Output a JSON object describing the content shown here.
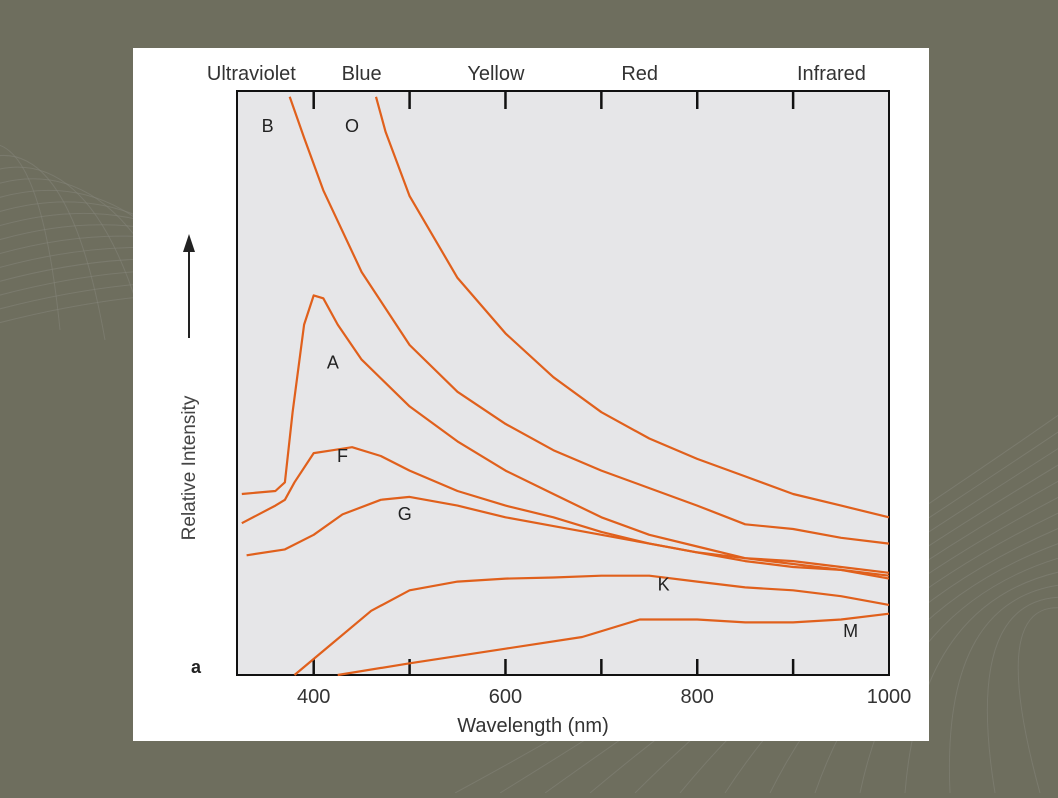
{
  "chart_data": {
    "type": "line",
    "panel_label": "a",
    "xlabel": "Wavelength (nm)",
    "ylabel": "Relative Intensity",
    "xlim": [
      320,
      1000
    ],
    "x_ticks": [
      400,
      600,
      800,
      1000
    ],
    "top_ticks": [
      400,
      500,
      600,
      700,
      800,
      900
    ],
    "color_bands": [
      {
        "label": "Ultraviolet",
        "x": 335
      },
      {
        "label": "Blue",
        "x": 450
      },
      {
        "label": "Yellow",
        "x": 590
      },
      {
        "label": "Red",
        "x": 740
      },
      {
        "label": "Infrared",
        "x": 940
      }
    ],
    "grid": false,
    "series": [
      {
        "name": "O",
        "color": "#e0601c",
        "points": [
          [
            465,
            0.99
          ],
          [
            475,
            0.93
          ],
          [
            500,
            0.82
          ],
          [
            550,
            0.68
          ],
          [
            600,
            0.585
          ],
          [
            650,
            0.51
          ],
          [
            700,
            0.45
          ],
          [
            750,
            0.405
          ],
          [
            800,
            0.37
          ],
          [
            850,
            0.34
          ],
          [
            900,
            0.31
          ],
          [
            950,
            0.29
          ],
          [
            1000,
            0.27
          ]
        ]
      },
      {
        "name": "B",
        "color": "#e0601c",
        "points": [
          [
            375,
            0.99
          ],
          [
            390,
            0.92
          ],
          [
            410,
            0.83
          ],
          [
            450,
            0.69
          ],
          [
            500,
            0.565
          ],
          [
            550,
            0.485
          ],
          [
            600,
            0.43
          ],
          [
            650,
            0.385
          ],
          [
            700,
            0.35
          ],
          [
            750,
            0.32
          ],
          [
            800,
            0.29
          ],
          [
            850,
            0.258
          ],
          [
            900,
            0.25
          ],
          [
            950,
            0.235
          ],
          [
            1000,
            0.225
          ]
        ]
      },
      {
        "name": "A",
        "color": "#e0601c",
        "points": [
          [
            325,
            0.31
          ],
          [
            360,
            0.315
          ],
          [
            370,
            0.33
          ],
          [
            378,
            0.45
          ],
          [
            390,
            0.6
          ],
          [
            400,
            0.65
          ],
          [
            410,
            0.645
          ],
          [
            425,
            0.6
          ],
          [
            450,
            0.54
          ],
          [
            500,
            0.46
          ],
          [
            550,
            0.4
          ],
          [
            600,
            0.35
          ],
          [
            650,
            0.31
          ],
          [
            700,
            0.27
          ],
          [
            750,
            0.24
          ],
          [
            800,
            0.22
          ],
          [
            850,
            0.2
          ],
          [
            900,
            0.19
          ],
          [
            950,
            0.18
          ],
          [
            1000,
            0.17
          ]
        ]
      },
      {
        "name": "F",
        "color": "#e0601c",
        "points": [
          [
            325,
            0.26
          ],
          [
            360,
            0.29
          ],
          [
            370,
            0.3
          ],
          [
            380,
            0.33
          ],
          [
            400,
            0.38
          ],
          [
            420,
            0.385
          ],
          [
            440,
            0.39
          ],
          [
            470,
            0.375
          ],
          [
            500,
            0.35
          ],
          [
            550,
            0.315
          ],
          [
            600,
            0.29
          ],
          [
            650,
            0.27
          ],
          [
            700,
            0.245
          ],
          [
            750,
            0.225
          ],
          [
            800,
            0.21
          ],
          [
            850,
            0.195
          ],
          [
            900,
            0.185
          ],
          [
            950,
            0.18
          ],
          [
            1000,
            0.165
          ]
        ]
      },
      {
        "name": "G",
        "color": "#e0601c",
        "points": [
          [
            330,
            0.205
          ],
          [
            370,
            0.215
          ],
          [
            400,
            0.24
          ],
          [
            430,
            0.275
          ],
          [
            470,
            0.3
          ],
          [
            500,
            0.305
          ],
          [
            550,
            0.29
          ],
          [
            600,
            0.27
          ],
          [
            650,
            0.255
          ],
          [
            700,
            0.24
          ],
          [
            750,
            0.225
          ],
          [
            800,
            0.21
          ],
          [
            850,
            0.2
          ],
          [
            900,
            0.195
          ],
          [
            950,
            0.185
          ],
          [
            1000,
            0.175
          ]
        ]
      },
      {
        "name": "K",
        "color": "#e0601c",
        "points": [
          [
            380,
            0.0
          ],
          [
            420,
            0.055
          ],
          [
            460,
            0.11
          ],
          [
            500,
            0.145
          ],
          [
            550,
            0.16
          ],
          [
            600,
            0.165
          ],
          [
            650,
            0.167
          ],
          [
            700,
            0.17
          ],
          [
            750,
            0.17
          ],
          [
            800,
            0.16
          ],
          [
            850,
            0.15
          ],
          [
            900,
            0.145
          ],
          [
            950,
            0.135
          ],
          [
            1000,
            0.12
          ]
        ]
      },
      {
        "name": "M",
        "color": "#e0601c",
        "points": [
          [
            425,
            0.0
          ],
          [
            500,
            0.02
          ],
          [
            600,
            0.045
          ],
          [
            680,
            0.065
          ],
          [
            740,
            0.095
          ],
          [
            800,
            0.095
          ],
          [
            850,
            0.09
          ],
          [
            900,
            0.09
          ],
          [
            950,
            0.095
          ],
          [
            1000,
            0.105
          ]
        ]
      }
    ]
  }
}
